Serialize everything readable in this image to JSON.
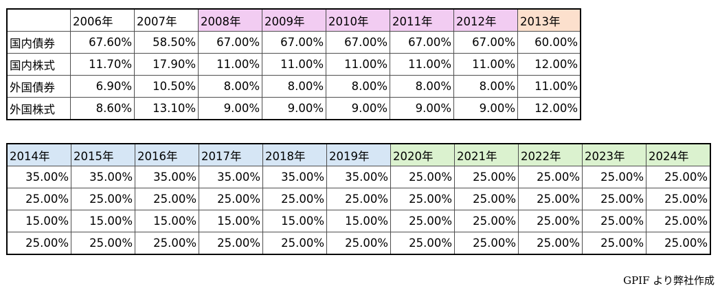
{
  "colors": {
    "pink": "#f2ccf2",
    "peach": "#fce0cd",
    "blue": "#d6e6f5",
    "green": "#dbf2cf"
  },
  "table1": {
    "years": [
      "2006年",
      "2007年",
      "2008年",
      "2009年",
      "2010年",
      "2011年",
      "2012年",
      "2013年"
    ],
    "year_colors": [
      "#ffffff",
      "#ffffff",
      "#f2ccf2",
      "#f2ccf2",
      "#f2ccf2",
      "#f2ccf2",
      "#f2ccf2",
      "#fce0cd"
    ],
    "rows": [
      {
        "label": "国内債券",
        "values": [
          "67.60%",
          "58.50%",
          "67.00%",
          "67.00%",
          "67.00%",
          "67.00%",
          "67.00%",
          "60.00%"
        ]
      },
      {
        "label": "国内株式",
        "values": [
          "11.70%",
          "17.90%",
          "11.00%",
          "11.00%",
          "11.00%",
          "11.00%",
          "11.00%",
          "12.00%"
        ]
      },
      {
        "label": "外国債券",
        "values": [
          "6.90%",
          "10.50%",
          "8.00%",
          "8.00%",
          "8.00%",
          "8.00%",
          "8.00%",
          "11.00%"
        ]
      },
      {
        "label": "外国株式",
        "values": [
          "8.60%",
          "13.10%",
          "9.00%",
          "9.00%",
          "9.00%",
          "9.00%",
          "9.00%",
          "12.00%"
        ]
      }
    ]
  },
  "table2": {
    "years": [
      "2014年",
      "2015年",
      "2016年",
      "2017年",
      "2018年",
      "2019年",
      "2020年",
      "2021年",
      "2022年",
      "2023年",
      "2024年"
    ],
    "year_colors": [
      "#d6e6f5",
      "#d6e6f5",
      "#d6e6f5",
      "#d6e6f5",
      "#d6e6f5",
      "#d6e6f5",
      "#dbf2cf",
      "#dbf2cf",
      "#dbf2cf",
      "#dbf2cf",
      "#dbf2cf"
    ],
    "rows": [
      {
        "values": [
          "35.00%",
          "35.00%",
          "35.00%",
          "35.00%",
          "35.00%",
          "35.00%",
          "25.00%",
          "25.00%",
          "25.00%",
          "25.00%",
          "25.00%"
        ]
      },
      {
        "values": [
          "25.00%",
          "25.00%",
          "25.00%",
          "25.00%",
          "25.00%",
          "25.00%",
          "25.00%",
          "25.00%",
          "25.00%",
          "25.00%",
          "25.00%"
        ]
      },
      {
        "values": [
          "15.00%",
          "15.00%",
          "15.00%",
          "15.00%",
          "15.00%",
          "15.00%",
          "25.00%",
          "25.00%",
          "25.00%",
          "25.00%",
          "25.00%"
        ]
      },
      {
        "values": [
          "25.00%",
          "25.00%",
          "25.00%",
          "25.00%",
          "25.00%",
          "25.00%",
          "25.00%",
          "25.00%",
          "25.00%",
          "25.00%",
          "25.00%"
        ]
      }
    ]
  },
  "source_note": "GPIF より弊社作成"
}
